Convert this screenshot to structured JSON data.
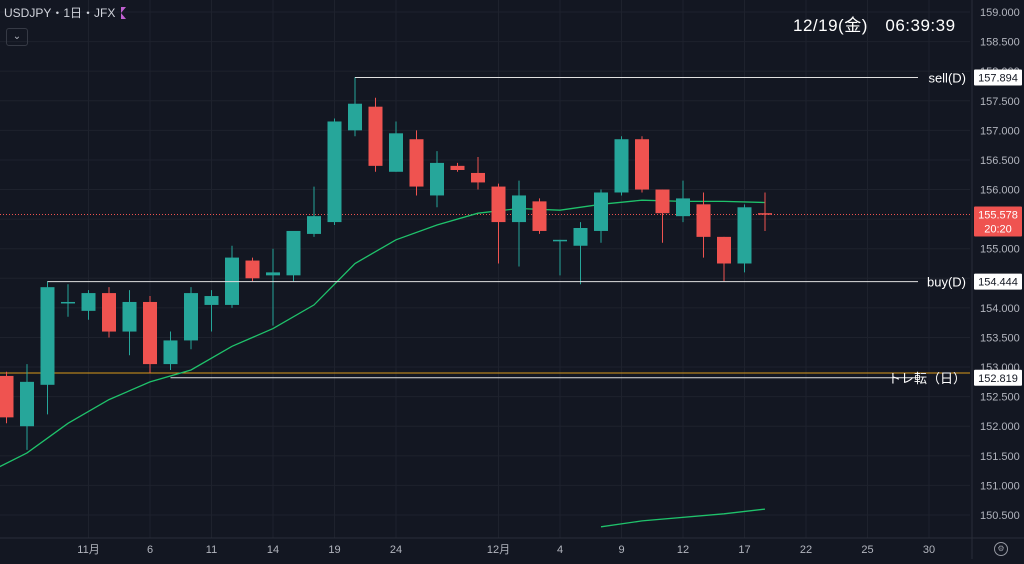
{
  "header": {
    "symbol": "USDJPY・1日・JFX",
    "clock": "12/19(金)　06:39:39"
  },
  "colors": {
    "up": "#26a69a",
    "down": "#ef5350",
    "ma": "#1fc26b",
    "bg": "#131722",
    "grid": "#1e222d",
    "trendline": "#e0e0e0",
    "orange": "#d89a1a"
  },
  "icons": {
    "dropdown": "chevron-down-icon",
    "flag": "flag-icon",
    "settings": "gear-icon"
  },
  "chart_data": {
    "type": "candlestick",
    "instrument": "USDJPY",
    "timeframe": "1日",
    "y_axis": {
      "ticks": [
        "159.000",
        "158.500",
        "158.000",
        "157.500",
        "157.000",
        "156.500",
        "156.000",
        "155.500",
        "155.000",
        "154.500",
        "154.000",
        "153.500",
        "153.000",
        "152.500",
        "152.000",
        "151.500",
        "151.000",
        "150.500"
      ],
      "ylim": [
        150.3,
        159.1
      ]
    },
    "x_axis": {
      "ticks": [
        {
          "label": "11月",
          "index": 4
        },
        {
          "label": "6",
          "index": 7
        },
        {
          "label": "11",
          "index": 10
        },
        {
          "label": "14",
          "index": 13
        },
        {
          "label": "19",
          "index": 16
        },
        {
          "label": "24",
          "index": 19
        },
        {
          "label": "12月",
          "index": 24
        },
        {
          "label": "4",
          "index": 27
        },
        {
          "label": "9",
          "index": 30
        },
        {
          "label": "12",
          "index": 33
        },
        {
          "label": "17",
          "index": 36
        },
        {
          "label": "22",
          "index": 39
        },
        {
          "label": "25",
          "index": 42
        },
        {
          "label": "30",
          "index": 45
        }
      ],
      "slot_count": 49
    },
    "candles": [
      {
        "o": 152.85,
        "h": 152.92,
        "l": 152.05,
        "c": 152.15
      },
      {
        "o": 152.0,
        "h": 153.05,
        "l": 151.6,
        "c": 152.75
      },
      {
        "o": 152.7,
        "h": 154.45,
        "l": 152.2,
        "c": 154.35
      },
      {
        "o": 154.1,
        "h": 154.4,
        "l": 153.85,
        "c": 154.1
      },
      {
        "o": 153.95,
        "h": 154.3,
        "l": 153.8,
        "c": 154.25
      },
      {
        "o": 154.25,
        "h": 154.35,
        "l": 153.5,
        "c": 153.6
      },
      {
        "o": 153.6,
        "h": 154.3,
        "l": 153.2,
        "c": 154.1
      },
      {
        "o": 154.1,
        "h": 154.2,
        "l": 152.9,
        "c": 153.05
      },
      {
        "o": 153.05,
        "h": 153.6,
        "l": 152.95,
        "c": 153.45
      },
      {
        "o": 153.45,
        "h": 154.35,
        "l": 153.3,
        "c": 154.25
      },
      {
        "o": 154.05,
        "h": 154.3,
        "l": 153.6,
        "c": 154.2
      },
      {
        "o": 154.05,
        "h": 155.05,
        "l": 154.0,
        "c": 154.85
      },
      {
        "o": 154.8,
        "h": 154.85,
        "l": 154.45,
        "c": 154.5
      },
      {
        "o": 154.55,
        "h": 155.0,
        "l": 153.7,
        "c": 154.6
      },
      {
        "o": 154.55,
        "h": 155.3,
        "l": 154.45,
        "c": 155.3
      },
      {
        "o": 155.25,
        "h": 156.05,
        "l": 155.2,
        "c": 155.55
      },
      {
        "o": 155.45,
        "h": 157.2,
        "l": 155.4,
        "c": 157.15
      },
      {
        "o": 157.0,
        "h": 157.9,
        "l": 156.9,
        "c": 157.45
      },
      {
        "o": 157.4,
        "h": 157.55,
        "l": 156.3,
        "c": 156.4
      },
      {
        "o": 156.3,
        "h": 157.15,
        "l": 156.3,
        "c": 156.95
      },
      {
        "o": 156.85,
        "h": 157.0,
        "l": 155.9,
        "c": 156.05
      },
      {
        "o": 155.9,
        "h": 156.65,
        "l": 155.7,
        "c": 156.45
      },
      {
        "o": 156.4,
        "h": 156.45,
        "l": 156.3,
        "c": 156.33
      },
      {
        "o": 156.28,
        "h": 156.55,
        "l": 156.0,
        "c": 156.12
      },
      {
        "o": 156.05,
        "h": 156.1,
        "l": 154.75,
        "c": 155.45
      },
      {
        "o": 155.45,
        "h": 156.15,
        "l": 154.7,
        "c": 155.9
      },
      {
        "o": 155.8,
        "h": 155.85,
        "l": 155.25,
        "c": 155.3
      },
      {
        "o": 155.15,
        "h": 155.15,
        "l": 154.55,
        "c": 155.15
      },
      {
        "o": 155.05,
        "h": 155.45,
        "l": 154.4,
        "c": 155.35
      },
      {
        "o": 155.3,
        "h": 156.0,
        "l": 155.1,
        "c": 155.95
      },
      {
        "o": 155.95,
        "h": 156.9,
        "l": 155.9,
        "c": 156.85
      },
      {
        "o": 156.85,
        "h": 156.9,
        "l": 155.95,
        "c": 156.0
      },
      {
        "o": 156.0,
        "h": 156.0,
        "l": 155.1,
        "c": 155.6
      },
      {
        "o": 155.55,
        "h": 156.15,
        "l": 155.45,
        "c": 155.85
      },
      {
        "o": 155.75,
        "h": 155.95,
        "l": 154.85,
        "c": 155.2
      },
      {
        "o": 155.2,
        "h": 155.2,
        "l": 154.45,
        "c": 154.75
      },
      {
        "o": 154.75,
        "h": 155.75,
        "l": 154.6,
        "c": 155.7
      },
      {
        "o": 155.6,
        "h": 155.95,
        "l": 155.3,
        "c": 155.58
      }
    ],
    "moving_average": {
      "points": [
        {
          "i": -1,
          "v": 151.2
        },
        {
          "i": 1,
          "v": 151.55
        },
        {
          "i": 3,
          "v": 152.05
        },
        {
          "i": 5,
          "v": 152.45
        },
        {
          "i": 7,
          "v": 152.75
        },
        {
          "i": 9,
          "v": 152.95
        },
        {
          "i": 11,
          "v": 153.35
        },
        {
          "i": 13,
          "v": 153.65
        },
        {
          "i": 15,
          "v": 154.05
        },
        {
          "i": 17,
          "v": 154.75
        },
        {
          "i": 19,
          "v": 155.15
        },
        {
          "i": 21,
          "v": 155.4
        },
        {
          "i": 23,
          "v": 155.6
        },
        {
          "i": 25,
          "v": 155.68
        },
        {
          "i": 27,
          "v": 155.65
        },
        {
          "i": 29,
          "v": 155.75
        },
        {
          "i": 31,
          "v": 155.82
        },
        {
          "i": 33,
          "v": 155.8
        },
        {
          "i": 35,
          "v": 155.8
        },
        {
          "i": 37,
          "v": 155.78
        }
      ]
    },
    "moving_average_2": {
      "points": [
        {
          "i": 29,
          "v": 150.3
        },
        {
          "i": 31,
          "v": 150.4
        },
        {
          "i": 35,
          "v": 150.52
        },
        {
          "i": 37,
          "v": 150.6
        }
      ]
    },
    "levels": [
      {
        "name": "sell(D)",
        "value": 157.894,
        "value_label": "157.894",
        "from_index": 17
      },
      {
        "name": "buy(D)",
        "value": 154.444,
        "value_label": "154.444",
        "from_index": 2
      },
      {
        "name": "トレ転（日）",
        "value": 152.819,
        "value_label": "152.819",
        "from_index": 8
      }
    ],
    "current_price": {
      "value": 155.578,
      "value_label": "155.578",
      "countdown": "20:20"
    },
    "orange_line": 152.9
  }
}
